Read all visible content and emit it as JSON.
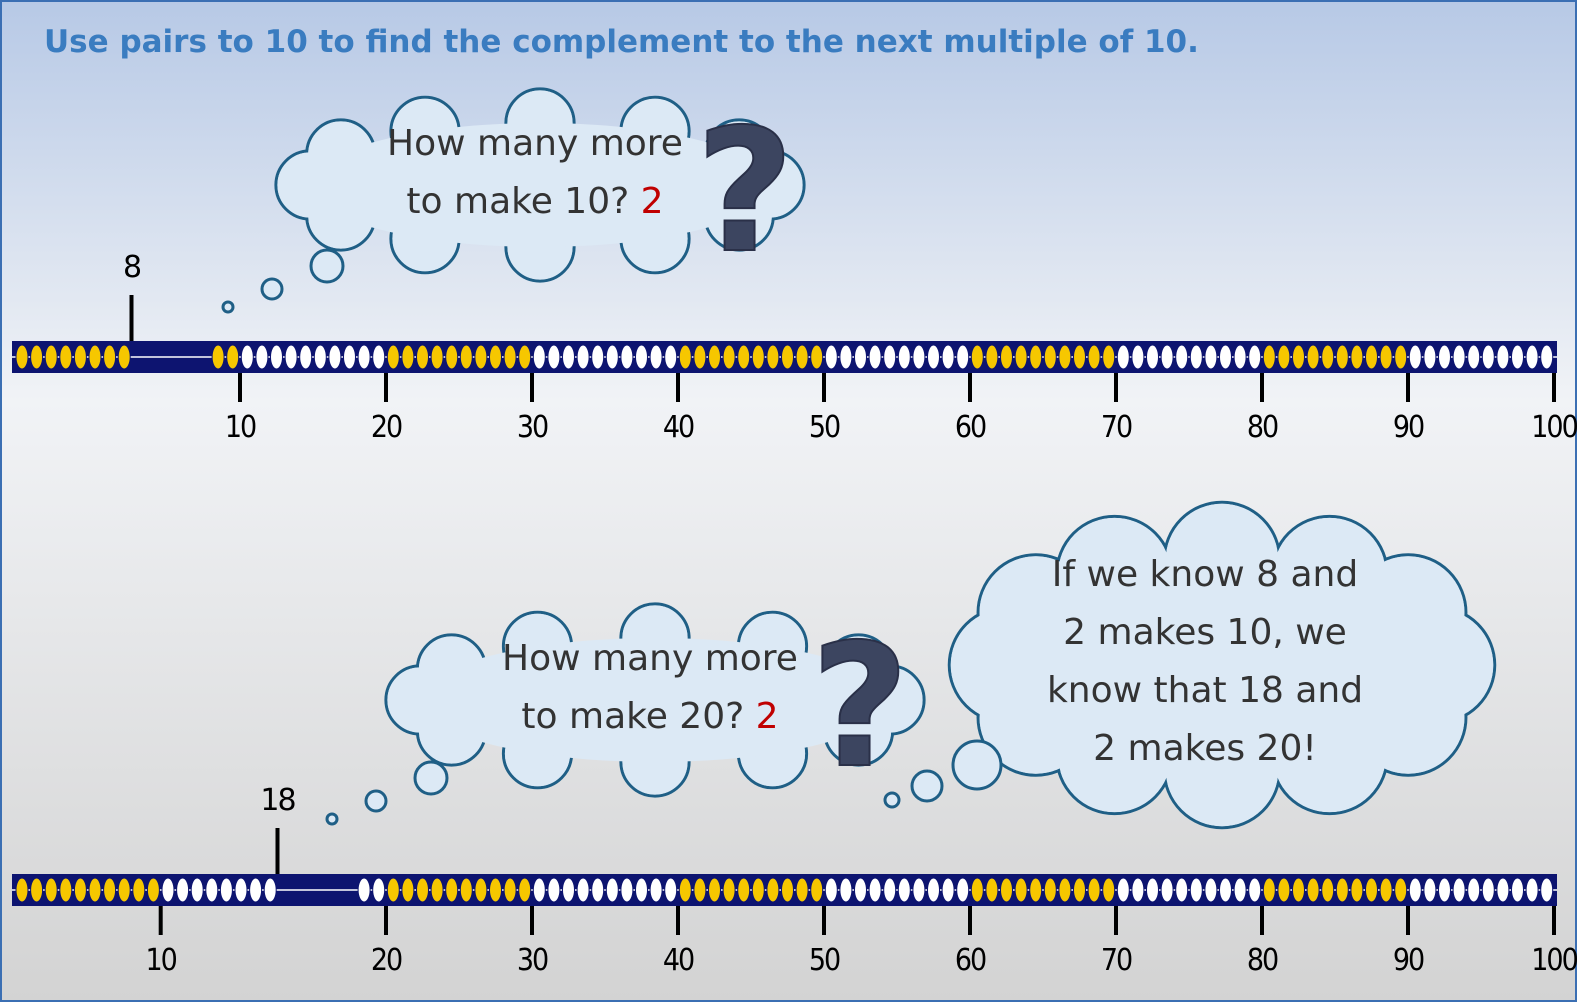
{
  "title": "Use pairs to 10 to find the complement to the next multiple of 10.",
  "rows": [
    {
      "marker": "8",
      "ticks": [
        "10",
        "20",
        "30",
        "40",
        "50",
        "60",
        "70",
        "80",
        "90",
        "100"
      ],
      "cloud": {
        "lines": [
          "How many more",
          "to make 10?"
        ],
        "answer": "2",
        "icon": "?"
      }
    },
    {
      "marker": "18",
      "ticks": [
        "10",
        "20",
        "30",
        "40",
        "50",
        "60",
        "70",
        "80",
        "90",
        "100"
      ],
      "cloud": {
        "lines": [
          "How many more",
          "to make 20?"
        ],
        "answer": "2",
        "icon": "?"
      }
    }
  ],
  "explanation": {
    "lines": [
      "If we know 8 and",
      "2 makes 10, we",
      "know that 18 and",
      "2 makes 20!"
    ]
  }
}
